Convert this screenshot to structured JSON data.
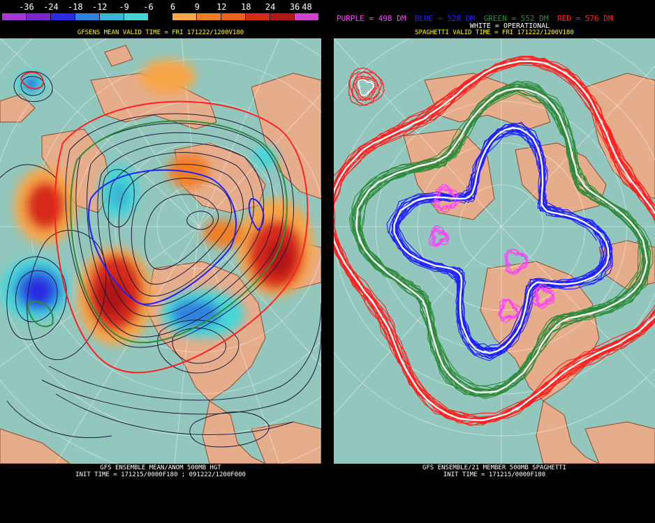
{
  "colorbar": {
    "labels": [
      "-36",
      "-24",
      "-18",
      "-12",
      "-9",
      "-6",
      "6",
      "9",
      "12",
      "18",
      "24",
      "36",
      "48"
    ],
    "colors": [
      "#a43ad6",
      "#7a26c8",
      "#2a2ae0",
      "#2f82e0",
      "#3ab4d6",
      "#46d6d6",
      "#000000",
      "#f7a64a",
      "#ef7f26",
      "#e8621a",
      "#d82c1a",
      "#b01818",
      "#cc44cc"
    ]
  },
  "left_panel": {
    "title": "GFSENS MEAN VALID TIME = FRI 171222/1200V180",
    "footer_line1": "GFS ENSEMBLE MEAN/ANOM 500MB HGT",
    "footer_line2": "INIT TIME = 171215/0000F180 ; 091222/1200F000"
  },
  "right_panel": {
    "legend": [
      {
        "text": "PURPLE = 498 DM",
        "color": "#ff40ff"
      },
      {
        "text": "BLUE = 528 DM",
        "color": "#2020ff"
      },
      {
        "text": "GREEN = 552 DM",
        "color": "#2e8b3a"
      },
      {
        "text": "RED = 576 DM",
        "color": "#ff2020"
      }
    ],
    "legend_white": "WHITE = OPERATIONAL",
    "title": "SPAGHETTI VALID TIME = FRI 171222/1200V180",
    "footer_line1": "GFS ENSEMBLE/21 MEMBER 500MB SPAGHETTI",
    "footer_line2": "INIT TIME = 171215/0000F180"
  },
  "map_colors": {
    "ocean": "#93c7bd",
    "land": "#e6ad8c",
    "border": "#8a4a2a",
    "graticule": "#ffffff"
  }
}
